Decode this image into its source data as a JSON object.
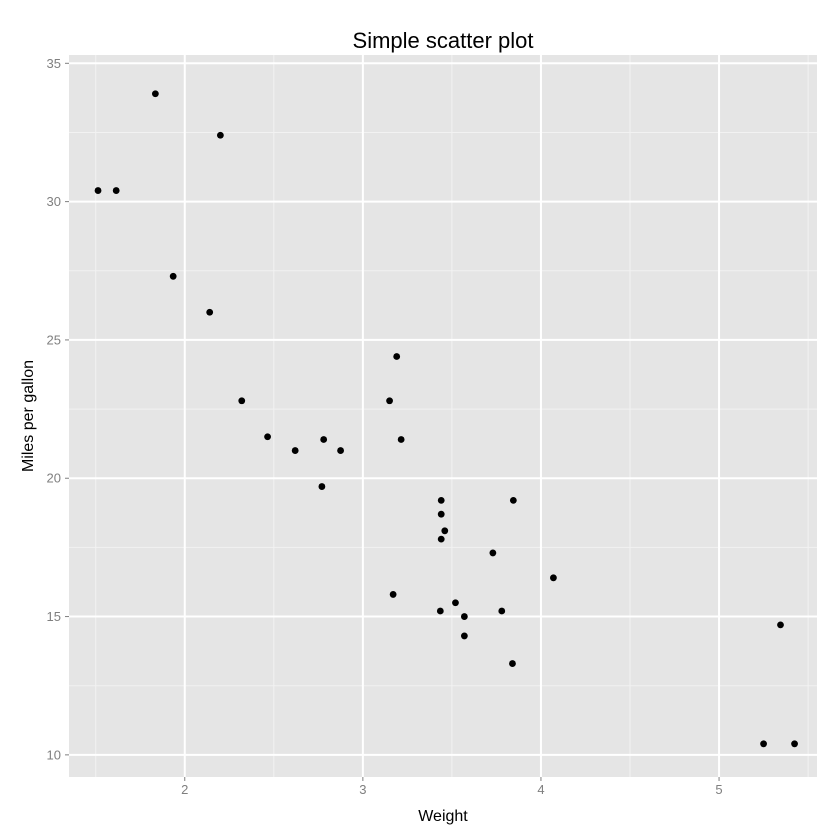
{
  "chart_data": {
    "type": "scatter",
    "title": "Simple scatter plot",
    "xlabel": "Weight",
    "ylabel": "Miles per gallon",
    "xlim": [
      1.35,
      5.55
    ],
    "ylim": [
      9.2,
      35.3
    ],
    "x_ticks": [
      2,
      3,
      4,
      5
    ],
    "y_ticks": [
      10,
      15,
      20,
      25,
      30,
      35
    ],
    "x_tick_labels": [
      "2",
      "3",
      "4",
      "5"
    ],
    "y_tick_labels": [
      "10",
      "15",
      "20",
      "25",
      "30",
      "35"
    ],
    "grid": true,
    "legend": "none",
    "colors": {
      "panel_background": "#e5e5e5",
      "major_grid": "#ffffff",
      "minor_grid": "#f2f2f2",
      "point": "#000000",
      "tick_label": "#7f7f7f"
    },
    "points": [
      {
        "x": 2.62,
        "y": 21.0
      },
      {
        "x": 2.875,
        "y": 21.0
      },
      {
        "x": 2.32,
        "y": 22.8
      },
      {
        "x": 3.215,
        "y": 21.4
      },
      {
        "x": 3.44,
        "y": 18.7
      },
      {
        "x": 3.46,
        "y": 18.1
      },
      {
        "x": 3.57,
        "y": 14.3
      },
      {
        "x": 3.19,
        "y": 24.4
      },
      {
        "x": 3.15,
        "y": 22.8
      },
      {
        "x": 3.44,
        "y": 19.2
      },
      {
        "x": 3.44,
        "y": 17.8
      },
      {
        "x": 4.07,
        "y": 16.4
      },
      {
        "x": 3.73,
        "y": 17.3
      },
      {
        "x": 3.78,
        "y": 15.2
      },
      {
        "x": 5.25,
        "y": 10.4
      },
      {
        "x": 5.424,
        "y": 10.4
      },
      {
        "x": 5.345,
        "y": 14.7
      },
      {
        "x": 2.2,
        "y": 32.4
      },
      {
        "x": 1.615,
        "y": 30.4
      },
      {
        "x": 1.835,
        "y": 33.9
      },
      {
        "x": 2.465,
        "y": 21.5
      },
      {
        "x": 3.52,
        "y": 15.5
      },
      {
        "x": 3.435,
        "y": 15.2
      },
      {
        "x": 3.84,
        "y": 13.3
      },
      {
        "x": 3.845,
        "y": 19.2
      },
      {
        "x": 1.935,
        "y": 27.3
      },
      {
        "x": 2.14,
        "y": 26.0
      },
      {
        "x": 1.513,
        "y": 30.4
      },
      {
        "x": 3.17,
        "y": 15.8
      },
      {
        "x": 2.77,
        "y": 19.7
      },
      {
        "x": 3.57,
        "y": 15.0
      },
      {
        "x": 2.78,
        "y": 21.4
      }
    ]
  }
}
